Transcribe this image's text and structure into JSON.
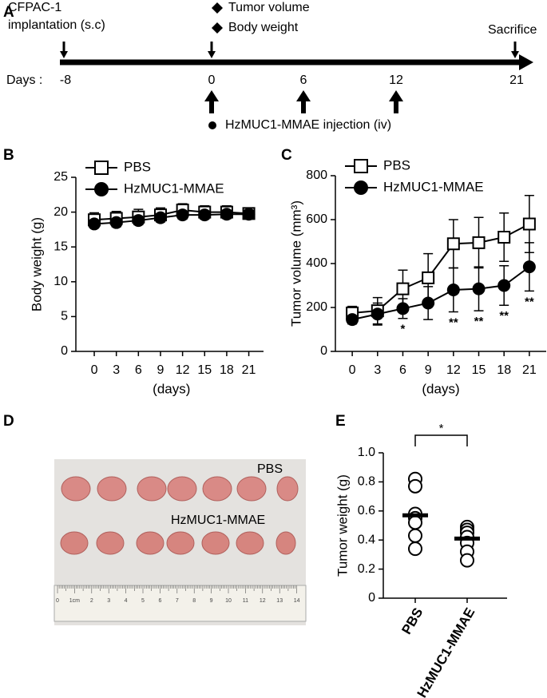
{
  "panels": [
    "A",
    "B",
    "C",
    "D",
    "E"
  ],
  "timeline": {
    "start_label": [
      "CFPAC-1",
      "implantation (s.c)"
    ],
    "measure_labels": [
      "Tumor volume",
      "Body weight"
    ],
    "end_label": "Sacrifice",
    "days_label": "Days :",
    "days": [
      -8,
      0,
      6,
      12,
      21
    ],
    "injection_label": "HzMUC1-MMAE injection (iv)"
  },
  "photo": {
    "labels": [
      "PBS",
      "HzMUC1-MMAE"
    ],
    "ruler_labels": [
      0,
      "1cm",
      2,
      3,
      4,
      5,
      6,
      7,
      8,
      9,
      10,
      11,
      12,
      13,
      14
    ]
  },
  "chart_data": [
    {
      "type": "line",
      "ylabel": "Body weight (g)",
      "xlabel": "(days)",
      "x": [
        0,
        3,
        6,
        9,
        12,
        15,
        18,
        21
      ],
      "xlim": [
        -2.5,
        23
      ],
      "xticks": [
        0,
        3,
        6,
        9,
        12,
        15,
        18,
        21
      ],
      "ylim": [
        0,
        25
      ],
      "yticks": [
        0,
        5,
        10,
        15,
        20,
        25
      ],
      "legend": "upper left",
      "series": [
        {
          "name": "PBS",
          "color": "#000000",
          "marker": "square",
          "values": [
            18.9,
            19.1,
            19.3,
            19.6,
            20.3,
            20.0,
            20.0,
            19.8
          ],
          "errors": [
            1.0,
            1.0,
            1.1,
            1.0,
            0.9,
            0.9,
            0.9,
            0.8
          ]
        },
        {
          "name": "HzMUC1-MMAE",
          "color": "#000000",
          "marker": "circle",
          "values": [
            18.3,
            18.5,
            18.8,
            19.2,
            19.6,
            19.6,
            19.7,
            19.7
          ],
          "errors": [
            0.5,
            0.6,
            0.6,
            0.6,
            0.6,
            0.6,
            0.6,
            0.6
          ]
        }
      ]
    },
    {
      "type": "line",
      "ylabel": "Tumor volume (mm³)",
      "xlabel": "(days)",
      "x": [
        0,
        3,
        6,
        9,
        12,
        15,
        18,
        21
      ],
      "xlim": [
        -2,
        23
      ],
      "xticks": [
        0,
        3,
        6,
        9,
        12,
        15,
        18,
        21
      ],
      "ylim": [
        0,
        800
      ],
      "yticks": [
        0,
        200,
        400,
        600,
        800
      ],
      "legend": "upper left",
      "series": [
        {
          "name": "PBS",
          "color": "#000000",
          "marker": "square",
          "values": [
            175,
            185,
            285,
            335,
            490,
            495,
            520,
            580
          ],
          "errors": [
            30,
            60,
            85,
            110,
            110,
            115,
            110,
            130
          ]
        },
        {
          "name": "HzMUC1-MMAE",
          "color": "#000000",
          "marker": "circle",
          "values": [
            145,
            170,
            195,
            220,
            280,
            285,
            300,
            385
          ],
          "errors": [
            20,
            50,
            45,
            75,
            100,
            100,
            90,
            110
          ]
        }
      ],
      "annotations": [
        {
          "x": 6,
          "text": "*"
        },
        {
          "x": 12,
          "text": "**"
        },
        {
          "x": 15,
          "text": "**"
        },
        {
          "x": 18,
          "text": "**"
        },
        {
          "x": 21,
          "text": "**"
        }
      ]
    },
    {
      "type": "dot",
      "ylabel": "Tumor weight (g)",
      "categories": [
        "PBS",
        "HzMUC1-MMAE"
      ],
      "values": [
        [
          0.82,
          0.77,
          0.58,
          0.55,
          0.52,
          0.43,
          0.34
        ],
        [
          0.49,
          0.47,
          0.45,
          0.42,
          0.38,
          0.32,
          0.26
        ]
      ],
      "means": [
        0.57,
        0.41
      ],
      "color": "#000000",
      "ylim": [
        0,
        1
      ],
      "yticks": [
        0,
        0.2,
        0.4,
        0.6,
        0.8,
        {
          "value": 1,
          "label": "1.0"
        }
      ],
      "significance": "*"
    }
  ]
}
